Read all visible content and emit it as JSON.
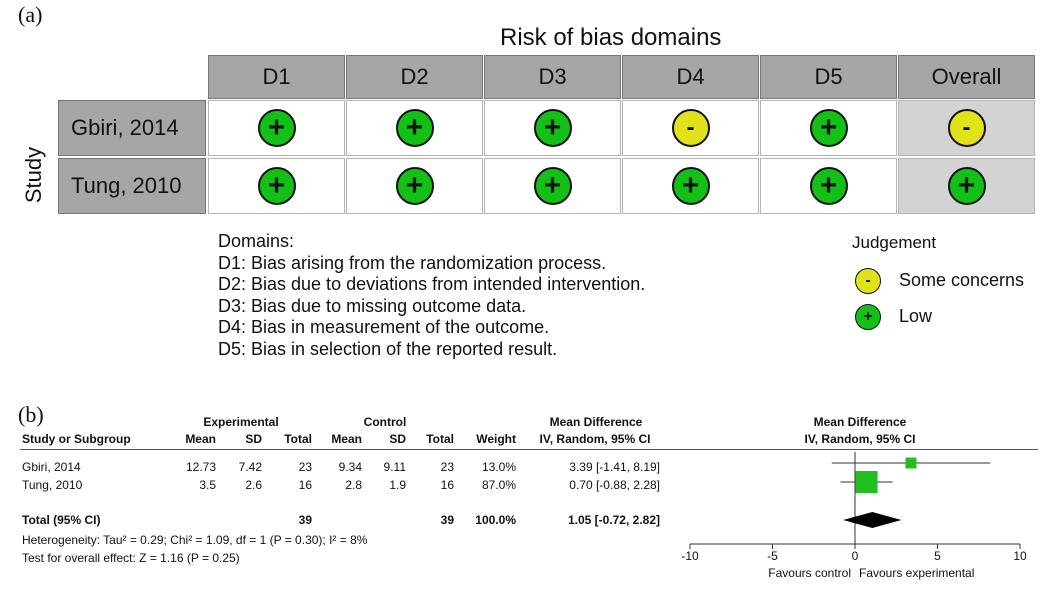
{
  "rob": {
    "panel_label": "(a)",
    "title": "Risk of bias domains",
    "axis_label": "Study",
    "headers": [
      "D1",
      "D2",
      "D3",
      "D4",
      "D5",
      "Overall"
    ],
    "rows": [
      {
        "study": "Gbiri, 2014",
        "judgements": [
          {
            "symbol": "+",
            "level": "low"
          },
          {
            "symbol": "+",
            "level": "low"
          },
          {
            "symbol": "+",
            "level": "low"
          },
          {
            "symbol": "-",
            "level": "some"
          },
          {
            "symbol": "+",
            "level": "low"
          },
          {
            "symbol": "-",
            "level": "some"
          }
        ]
      },
      {
        "study": "Tung, 2010",
        "judgements": [
          {
            "symbol": "+",
            "level": "low"
          },
          {
            "symbol": "+",
            "level": "low"
          },
          {
            "symbol": "+",
            "level": "low"
          },
          {
            "symbol": "+",
            "level": "low"
          },
          {
            "symbol": "+",
            "level": "low"
          },
          {
            "symbol": "+",
            "level": "low"
          }
        ]
      }
    ],
    "domains_title": "Domains:",
    "domains": [
      "D1: Bias arising from the randomization process.",
      "D2: Bias due to deviations from intended intervention.",
      "D3: Bias due to missing outcome data.",
      "D4: Bias in measurement of the outcome.",
      "D5: Bias in selection of the reported result."
    ],
    "judgement_title": "Judgement",
    "legend": [
      {
        "symbol": "-",
        "level": "some",
        "label": "Some concerns"
      },
      {
        "symbol": "+",
        "level": "low",
        "label": "Low"
      }
    ],
    "colors": {
      "low": "#12c016",
      "some": "#e2e21a",
      "header": "#a6a6a6",
      "overall": "#d3d3d3"
    }
  },
  "chart_data": {
    "type": "forest",
    "panel_label": "(b)",
    "group_headers": {
      "experimental": "Experimental",
      "control": "Control",
      "md_left": "Mean Difference",
      "md_right": "Mean Difference"
    },
    "columns": [
      "Study or Subgroup",
      "Mean",
      "SD",
      "Total",
      "Mean",
      "SD",
      "Total",
      "Weight",
      "IV, Random, 95% CI",
      "IV, Random, 95% CI"
    ],
    "studies": [
      {
        "name": "Gbiri, 2014",
        "exp_mean": "12.73",
        "exp_sd": "7.42",
        "exp_total": "23",
        "ctl_mean": "9.34",
        "ctl_sd": "9.11",
        "ctl_total": "23",
        "weight": "13.0%",
        "ci_text": "3.39 [-1.41, 8.19]",
        "md": 3.39,
        "lo": -1.41,
        "hi": 8.19,
        "w": 13.0
      },
      {
        "name": "Tung, 2010",
        "exp_mean": "3.5",
        "exp_sd": "2.6",
        "exp_total": "16",
        "ctl_mean": "2.8",
        "ctl_sd": "1.9",
        "ctl_total": "16",
        "weight": "87.0%",
        "ci_text": "0.70 [-0.88, 2.28]",
        "md": 0.7,
        "lo": -0.88,
        "hi": 2.28,
        "w": 87.0
      }
    ],
    "total": {
      "name": "Total (95% CI)",
      "exp_total": "39",
      "ctl_total": "39",
      "weight": "100.0%",
      "ci_text": "1.05 [-0.72, 2.82]",
      "md": 1.05,
      "lo": -0.72,
      "hi": 2.82
    },
    "heterogeneity": "Heterogeneity: Tau² = 0.29; Chi² = 1.09, df = 1 (P = 0.30); I² = 8%",
    "overall_effect": "Test for overall effect: Z = 1.16 (P = 0.25)",
    "x_ticks": [
      -10,
      -5,
      0,
      5,
      10
    ],
    "xlim": [
      -10,
      10
    ],
    "favours_left": "Favours control",
    "favours_right": "Favours experimental",
    "colors": {
      "square": "#1fc01f",
      "diamond": "#000000"
    }
  }
}
